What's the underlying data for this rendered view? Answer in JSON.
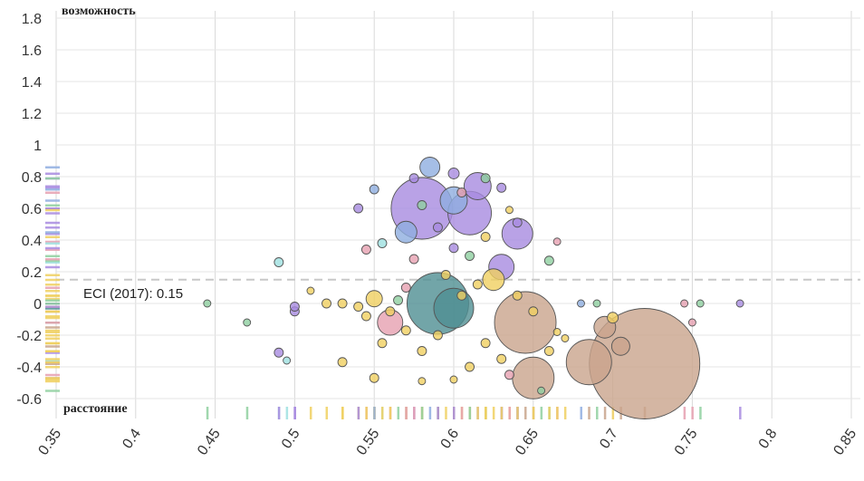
{
  "chart_data": {
    "type": "scatter",
    "title": "",
    "xlabel": "расстояние",
    "ylabel": "возможность",
    "xlim": [
      0.35,
      0.85
    ],
    "ylim": [
      -0.6,
      1.8
    ],
    "x_ticks": [
      "0.35",
      "0.4",
      "0.45",
      "0.5",
      "0.55",
      "0.6",
      "0.65",
      "0.7",
      "0.75",
      "0.8",
      "0.85"
    ],
    "y_ticks": [
      "1.8",
      "1.6",
      "1.4",
      "1.2",
      "1",
      "0.8",
      "0.6",
      "0.4",
      "0.2",
      "0",
      "-0.2",
      "-0.4",
      "-0.6"
    ],
    "grid": true,
    "reference_line": {
      "label": "ECI (2017): 0.15",
      "y": 0.15
    },
    "colors": {
      "purple": "#a88be0",
      "blue": "#8faee0",
      "teal": "#4f8e92",
      "yellow": "#f0d060",
      "tan": "#c9a48c",
      "pink": "#e6a0b0",
      "green": "#8fd0a0",
      "cyan": "#9ee0e0",
      "outline": "#555555"
    },
    "points": [
      {
        "x": 0.585,
        "y": 0.86,
        "size": 11,
        "color": "blue"
      },
      {
        "x": 0.615,
        "y": 0.74,
        "size": 15,
        "color": "purple"
      },
      {
        "x": 0.58,
        "y": 0.6,
        "size": 34,
        "color": "purple"
      },
      {
        "x": 0.61,
        "y": 0.57,
        "size": 24,
        "color": "purple"
      },
      {
        "x": 0.64,
        "y": 0.44,
        "size": 17,
        "color": "purple"
      },
      {
        "x": 0.57,
        "y": 0.45,
        "size": 12,
        "color": "blue"
      },
      {
        "x": 0.63,
        "y": 0.23,
        "size": 14,
        "color": "purple"
      },
      {
        "x": 0.6,
        "y": 0.65,
        "size": 15,
        "color": "blue"
      },
      {
        "x": 0.59,
        "y": 0.0,
        "size": 34,
        "color": "teal"
      },
      {
        "x": 0.6,
        "y": -0.03,
        "size": 22,
        "color": "teal"
      },
      {
        "x": 0.645,
        "y": -0.12,
        "size": 34,
        "color": "tan"
      },
      {
        "x": 0.72,
        "y": -0.38,
        "size": 61,
        "color": "tan"
      },
      {
        "x": 0.685,
        "y": -0.37,
        "size": 25,
        "color": "tan"
      },
      {
        "x": 0.65,
        "y": -0.47,
        "size": 23,
        "color": "tan"
      },
      {
        "x": 0.695,
        "y": -0.15,
        "size": 12,
        "color": "tan"
      },
      {
        "x": 0.705,
        "y": -0.27,
        "size": 10,
        "color": "tan"
      },
      {
        "x": 0.56,
        "y": -0.12,
        "size": 14,
        "color": "pink"
      },
      {
        "x": 0.7,
        "y": -0.09,
        "size": 6,
        "color": "yellow"
      },
      {
        "x": 0.625,
        "y": 0.15,
        "size": 12,
        "color": "yellow"
      },
      {
        "x": 0.55,
        "y": 0.03,
        "size": 9,
        "color": "yellow"
      },
      {
        "x": 0.52,
        "y": 0.0,
        "size": 5,
        "color": "yellow"
      },
      {
        "x": 0.53,
        "y": 0.0,
        "size": 5,
        "color": "yellow"
      },
      {
        "x": 0.54,
        "y": -0.02,
        "size": 5,
        "color": "yellow"
      },
      {
        "x": 0.51,
        "y": 0.08,
        "size": 4,
        "color": "yellow"
      },
      {
        "x": 0.5,
        "y": -0.05,
        "size": 5,
        "color": "purple"
      },
      {
        "x": 0.49,
        "y": 0.26,
        "size": 5,
        "color": "cyan"
      },
      {
        "x": 0.47,
        "y": -0.12,
        "size": 4,
        "color": "green"
      },
      {
        "x": 0.445,
        "y": 0.0,
        "size": 4,
        "color": "green"
      },
      {
        "x": 0.495,
        "y": -0.36,
        "size": 4,
        "color": "cyan"
      },
      {
        "x": 0.49,
        "y": -0.31,
        "size": 5,
        "color": "purple"
      },
      {
        "x": 0.5,
        "y": -0.02,
        "size": 5,
        "color": "purple"
      },
      {
        "x": 0.53,
        "y": -0.37,
        "size": 5,
        "color": "yellow"
      },
      {
        "x": 0.55,
        "y": -0.47,
        "size": 5,
        "color": "yellow"
      },
      {
        "x": 0.68,
        "y": 0.0,
        "size": 4,
        "color": "blue"
      },
      {
        "x": 0.69,
        "y": 0.0,
        "size": 4,
        "color": "green"
      },
      {
        "x": 0.75,
        "y": -0.12,
        "size": 4,
        "color": "pink"
      },
      {
        "x": 0.745,
        "y": 0.0,
        "size": 4,
        "color": "pink"
      },
      {
        "x": 0.78,
        "y": 0.0,
        "size": 4,
        "color": "purple"
      },
      {
        "x": 0.755,
        "y": 0.0,
        "size": 4,
        "color": "green"
      },
      {
        "x": 0.665,
        "y": 0.39,
        "size": 4,
        "color": "pink"
      },
      {
        "x": 0.66,
        "y": 0.27,
        "size": 5,
        "color": "green"
      },
      {
        "x": 0.575,
        "y": 0.79,
        "size": 5,
        "color": "purple"
      },
      {
        "x": 0.6,
        "y": 0.82,
        "size": 6,
        "color": "purple"
      },
      {
        "x": 0.62,
        "y": 0.79,
        "size": 5,
        "color": "green"
      },
      {
        "x": 0.63,
        "y": 0.73,
        "size": 5,
        "color": "purple"
      },
      {
        "x": 0.55,
        "y": 0.72,
        "size": 5,
        "color": "blue"
      },
      {
        "x": 0.54,
        "y": 0.6,
        "size": 5,
        "color": "purple"
      },
      {
        "x": 0.555,
        "y": 0.38,
        "size": 5,
        "color": "cyan"
      },
      {
        "x": 0.545,
        "y": 0.34,
        "size": 5,
        "color": "pink"
      },
      {
        "x": 0.64,
        "y": 0.51,
        "size": 5,
        "color": "purple"
      },
      {
        "x": 0.635,
        "y": 0.59,
        "size": 4,
        "color": "yellow"
      },
      {
        "x": 0.67,
        "y": -0.22,
        "size": 4,
        "color": "yellow"
      },
      {
        "x": 0.665,
        "y": -0.18,
        "size": 4,
        "color": "yellow"
      },
      {
        "x": 0.6,
        "y": -0.48,
        "size": 4,
        "color": "yellow"
      },
      {
        "x": 0.58,
        "y": -0.49,
        "size": 4,
        "color": "yellow"
      },
      {
        "x": 0.655,
        "y": -0.55,
        "size": 4,
        "color": "green"
      },
      {
        "x": 0.57,
        "y": -0.17,
        "size": 5,
        "color": "yellow"
      },
      {
        "x": 0.58,
        "y": -0.3,
        "size": 5,
        "color": "yellow"
      },
      {
        "x": 0.61,
        "y": -0.4,
        "size": 5,
        "color": "yellow"
      },
      {
        "x": 0.62,
        "y": -0.25,
        "size": 5,
        "color": "yellow"
      },
      {
        "x": 0.59,
        "y": -0.2,
        "size": 5,
        "color": "yellow"
      },
      {
        "x": 0.63,
        "y": -0.35,
        "size": 5,
        "color": "yellow"
      },
      {
        "x": 0.605,
        "y": 0.05,
        "size": 5,
        "color": "yellow"
      },
      {
        "x": 0.615,
        "y": 0.12,
        "size": 5,
        "color": "yellow"
      },
      {
        "x": 0.595,
        "y": 0.18,
        "size": 5,
        "color": "yellow"
      },
      {
        "x": 0.57,
        "y": 0.1,
        "size": 5,
        "color": "pink"
      },
      {
        "x": 0.575,
        "y": 0.28,
        "size": 5,
        "color": "pink"
      },
      {
        "x": 0.6,
        "y": 0.35,
        "size": 5,
        "color": "purple"
      },
      {
        "x": 0.62,
        "y": 0.42,
        "size": 5,
        "color": "yellow"
      },
      {
        "x": 0.59,
        "y": 0.48,
        "size": 5,
        "color": "purple"
      },
      {
        "x": 0.61,
        "y": 0.3,
        "size": 5,
        "color": "green"
      },
      {
        "x": 0.64,
        "y": 0.05,
        "size": 5,
        "color": "yellow"
      },
      {
        "x": 0.65,
        "y": -0.05,
        "size": 5,
        "color": "yellow"
      },
      {
        "x": 0.66,
        "y": -0.3,
        "size": 5,
        "color": "yellow"
      },
      {
        "x": 0.635,
        "y": -0.45,
        "size": 5,
        "color": "pink"
      },
      {
        "x": 0.56,
        "y": -0.05,
        "size": 5,
        "color": "yellow"
      },
      {
        "x": 0.565,
        "y": 0.02,
        "size": 5,
        "color": "green"
      },
      {
        "x": 0.555,
        "y": -0.25,
        "size": 5,
        "color": "yellow"
      },
      {
        "x": 0.545,
        "y": -0.08,
        "size": 5,
        "color": "yellow"
      },
      {
        "x": 0.58,
        "y": 0.62,
        "size": 5,
        "color": "green"
      },
      {
        "x": 0.605,
        "y": 0.7,
        "size": 5,
        "color": "pink"
      }
    ]
  }
}
